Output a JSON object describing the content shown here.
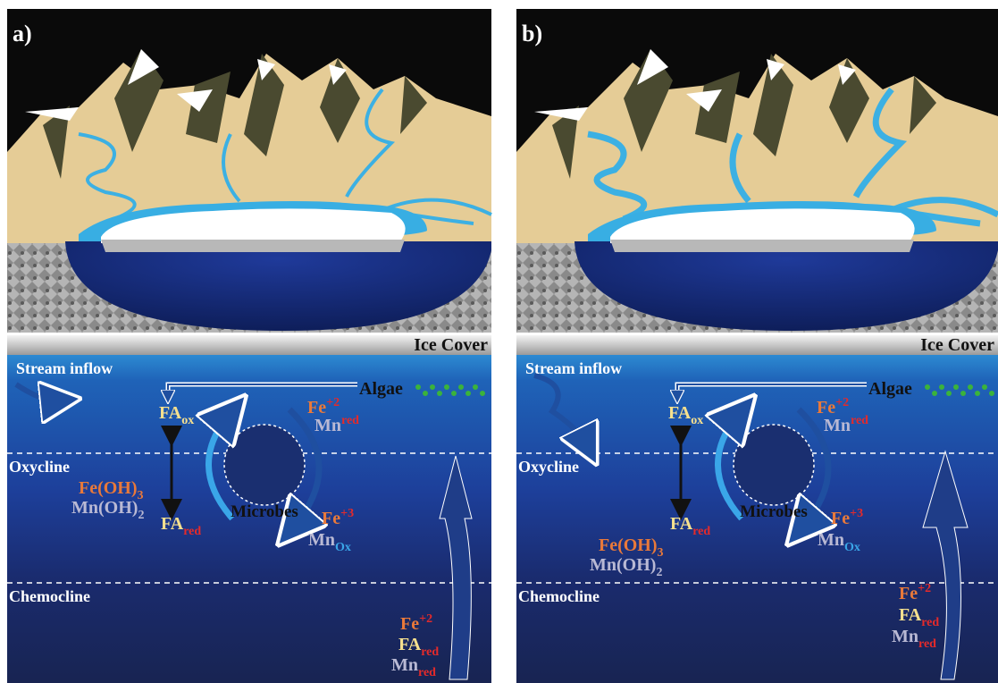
{
  "panels": [
    {
      "label": "a)",
      "ice_cover": "Ice Cover",
      "stream_inflow": "Stream inflow",
      "algae": "Algae",
      "oxycline": "Oxycline",
      "chemocline": "Chemocline",
      "microbes": "Microbes",
      "species": [
        {
          "base": "FA",
          "sub": "ox"
        },
        {
          "base": "Fe",
          "sup": "+2"
        },
        {
          "base": "Mn",
          "sup": "red"
        },
        {
          "base": "Fe(OH)",
          "sub": "3"
        },
        {
          "base": "Mn(OH)",
          "sub": "2"
        },
        {
          "base": "FA",
          "sub": "red"
        },
        {
          "base": "Fe",
          "sup": "+3"
        },
        {
          "base": "Mn",
          "sub": "Ox"
        },
        {
          "base": "Fe",
          "sup": "+2"
        },
        {
          "base": "FA",
          "sub": "red"
        },
        {
          "base": "Mn",
          "sub": "red"
        }
      ]
    },
    {
      "label": "b)",
      "ice_cover": "Ice Cover",
      "stream_inflow": "Stream inflow",
      "algae": "Algae",
      "oxycline": "Oxycline",
      "chemocline": "Chemocline",
      "microbes": "Microbes",
      "species": [
        {
          "base": "FA",
          "sub": "ox"
        },
        {
          "base": "Fe",
          "sup": "+2"
        },
        {
          "base": "Mn",
          "sup": "red"
        },
        {
          "base": "Fe(OH)",
          "sub": "3"
        },
        {
          "base": "Mn(OH)",
          "sub": "2"
        },
        {
          "base": "FA",
          "sub": "red"
        },
        {
          "base": "Fe",
          "sup": "+3"
        },
        {
          "base": "Mn",
          "sub": "Ox"
        },
        {
          "base": "Fe",
          "sup": "+2"
        },
        {
          "base": "FA",
          "sub": "red"
        },
        {
          "base": "Mn",
          "sub": "red"
        }
      ]
    }
  ]
}
